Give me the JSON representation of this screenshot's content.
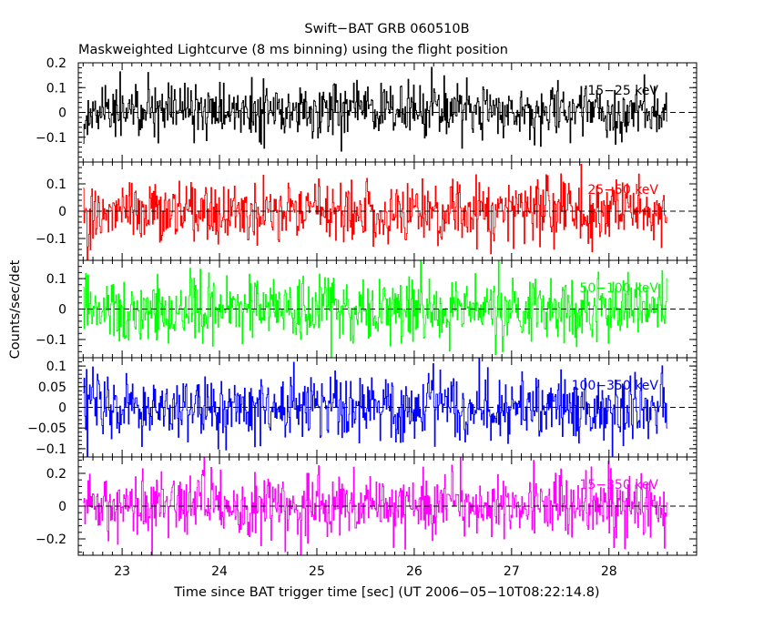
{
  "chart_data": {
    "type": "line",
    "title": "Swift−BAT GRB 060510B",
    "subtitle": "Maskweighted Lightcurve (8 ms binning) using the flight position",
    "xlabel": "Time since BAT trigger time [sec] (UT 2006−05−10T08:22:14.8)",
    "ylabel": "Counts/sec/det",
    "xlim": [
      22.55,
      28.9
    ],
    "x_start": 22.6,
    "x_end": 28.6,
    "bin_width": 0.008,
    "x_ticks": [
      23,
      24,
      25,
      26,
      27,
      28
    ],
    "x_tick_labels": [
      "23",
      "24",
      "25",
      "26",
      "27",
      "28"
    ],
    "panels": [
      {
        "band": "15−25 keV",
        "color": "#000000",
        "ylim": [
          -0.2,
          0.2
        ],
        "y_ticks": [
          0.2,
          0.1,
          0,
          -0.1
        ],
        "y_tick_labels": [
          "0.2",
          "0.1",
          "0",
          "−0.1"
        ],
        "noise_sigma": 0.055,
        "mean": 0.005
      },
      {
        "band": "25−50 keV",
        "color": "#ff0000",
        "ylim": [
          -0.18,
          0.18
        ],
        "y_ticks": [
          0.1,
          0,
          -0.1
        ],
        "y_tick_labels": [
          "0.1",
          "0",
          "−0.1"
        ],
        "noise_sigma": 0.06,
        "mean": 0.0
      },
      {
        "band": "50−100 keV",
        "color": "#00ff00",
        "ylim": [
          -0.16,
          0.16
        ],
        "y_ticks": [
          0.1,
          0,
          -0.1
        ],
        "y_tick_labels": [
          "0.1",
          "0",
          "−0.1"
        ],
        "noise_sigma": 0.055,
        "mean": 0.0
      },
      {
        "band": "100−350 keV",
        "color": "#0000ff",
        "ylim": [
          -0.12,
          0.12
        ],
        "y_ticks": [
          0.1,
          0.05,
          0,
          -0.05,
          -0.1
        ],
        "y_tick_labels": [
          "0.1",
          "0.05",
          "0",
          "−0.05",
          "−0.1"
        ],
        "noise_sigma": 0.04,
        "mean": 0.0
      },
      {
        "band": "15−350 keV",
        "color": "#ff00ff",
        "ylim": [
          -0.3,
          0.3
        ],
        "y_ticks": [
          0.2,
          0,
          -0.2
        ],
        "y_tick_labels": [
          "0.2",
          "0",
          "−0.2"
        ],
        "noise_sigma": 0.1,
        "mean": 0.005
      }
    ]
  }
}
